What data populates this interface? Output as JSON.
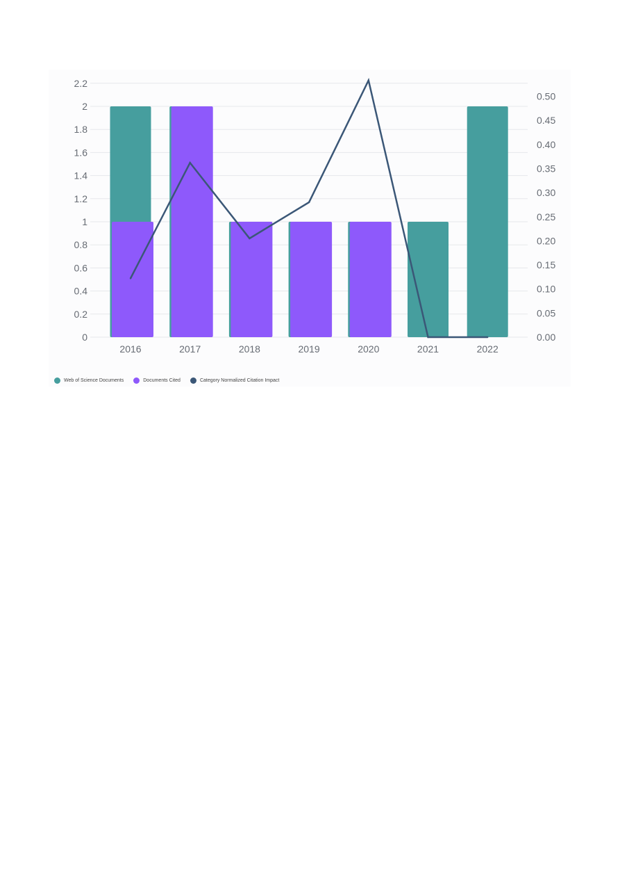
{
  "chart_data": {
    "type": "bar",
    "categories": [
      "2016",
      "2017",
      "2018",
      "2019",
      "2020",
      "2021",
      "2022"
    ],
    "series": [
      {
        "name": "Web of Science Documents",
        "type": "bar",
        "axis": "left",
        "color": "#469e9e",
        "values": [
          2,
          2,
          1,
          1,
          1,
          1,
          2
        ]
      },
      {
        "name": "Documents Cited",
        "type": "bar",
        "axis": "left",
        "color": "#8e59fb",
        "values": [
          1,
          2,
          1,
          1,
          1,
          0,
          0
        ]
      },
      {
        "name": "Category Normalized Citation Impact",
        "type": "line",
        "axis": "right",
        "color": "#3b5777",
        "values": [
          0.122,
          0.362,
          0.205,
          0.28,
          0.533,
          0,
          0
        ]
      }
    ],
    "ylim_left": [
      0,
      2.2
    ],
    "yticks_left": [
      "0",
      "0.2",
      "0.4",
      "0.6",
      "0.8",
      "1",
      "1.2",
      "1.4",
      "1.6",
      "1.8",
      "2",
      "2.2"
    ],
    "ylim_right": [
      0,
      0.533
    ],
    "yticks_right": [
      "0.00",
      "0.05",
      "0.10",
      "0.15",
      "0.20",
      "0.25",
      "0.30",
      "0.35",
      "0.40",
      "0.45",
      "0.50"
    ],
    "legend_position": "bottom-left",
    "grid": true
  },
  "legend": {
    "items": [
      {
        "label": "Web of Science Documents",
        "color": "#469e9e"
      },
      {
        "label": "Documents Cited",
        "color": "#8e59fb"
      },
      {
        "label": "Category Normalized Citation Impact",
        "color": "#3b5777"
      }
    ]
  }
}
